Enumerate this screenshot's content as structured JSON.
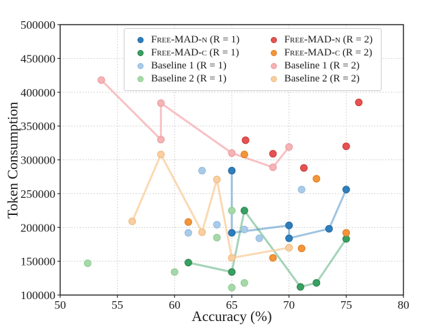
{
  "chart_data": {
    "type": "scatter",
    "title": "",
    "xlabel": "Accuracy (%)",
    "ylabel": "Token Consumption",
    "xlim": [
      50,
      80
    ],
    "ylim": [
      100000,
      500000
    ],
    "xticks": [
      50,
      55,
      60,
      65,
      70,
      75,
      80
    ],
    "yticks": [
      100000,
      150000,
      200000,
      250000,
      300000,
      350000,
      400000,
      450000,
      500000
    ],
    "grid": true,
    "legend_position": "upper center",
    "series": [
      {
        "label": "Free-MAD-n",
        "r_label": "(R = 1)",
        "smallcaps": true,
        "fill": "#2e7ebc",
        "edge": "#2268a0",
        "line": true,
        "line_alpha": 0.45,
        "points": [
          [
            65.0,
            284000
          ],
          [
            65.0,
            192000
          ],
          [
            70.0,
            203000
          ],
          [
            70.0,
            184000
          ],
          [
            73.5,
            198000
          ],
          [
            75.0,
            256000
          ]
        ]
      },
      {
        "label": "Free-MAD-c",
        "r_label": "(R = 1)",
        "smallcaps": true,
        "fill": "#38a061",
        "edge": "#2b824c",
        "line": true,
        "line_alpha": 0.45,
        "points": [
          [
            61.2,
            148000
          ],
          [
            65.0,
            134000
          ],
          [
            66.1,
            225000
          ],
          [
            71.0,
            112000
          ],
          [
            72.4,
            118000
          ],
          [
            75.0,
            183000
          ]
        ]
      },
      {
        "label": "Baseline 1",
        "r_label": "(R = 1)",
        "smallcaps": false,
        "fill": "#a9cbe9",
        "edge": "#93bbde",
        "line": false,
        "line_alpha": 0.45,
        "points": [
          [
            61.2,
            192000
          ],
          [
            62.4,
            284000
          ],
          [
            63.7,
            204000
          ],
          [
            66.1,
            197000
          ],
          [
            67.4,
            184000
          ],
          [
            71.1,
            256000
          ]
        ]
      },
      {
        "label": "Baseline 2",
        "r_label": "(R = 1)",
        "smallcaps": false,
        "fill": "#a6d9a8",
        "edge": "#8fc992",
        "line": false,
        "line_alpha": 0.45,
        "points": [
          [
            52.4,
            147000
          ],
          [
            60.0,
            134000
          ],
          [
            63.7,
            185000
          ],
          [
            65.0,
            225000
          ],
          [
            65.0,
            111000
          ],
          [
            66.1,
            118000
          ]
        ]
      },
      {
        "label": "Free-MAD-n",
        "r_label": "(R = 2)",
        "smallcaps": true,
        "fill": "#e85151",
        "edge": "#c63b3b",
        "line": false,
        "line_alpha": 0.45,
        "points": [
          [
            66.2,
            329000
          ],
          [
            68.6,
            309000
          ],
          [
            71.3,
            288000
          ],
          [
            75.0,
            320000
          ],
          [
            76.1,
            385000
          ]
        ]
      },
      {
        "label": "Free-MAD-c",
        "r_label": "(R = 2)",
        "smallcaps": true,
        "fill": "#f49539",
        "edge": "#da7e23",
        "line": false,
        "line_alpha": 0.45,
        "points": [
          [
            61.2,
            208000
          ],
          [
            66.1,
            308000
          ],
          [
            68.6,
            155000
          ],
          [
            71.1,
            169000
          ],
          [
            72.4,
            272000
          ],
          [
            75.0,
            192000
          ]
        ]
      },
      {
        "label": "Baseline 1",
        "r_label": "(R = 2)",
        "smallcaps": false,
        "fill": "#f5b3b5",
        "edge": "#ea9c9f",
        "line": true,
        "line_alpha": 0.8,
        "points": [
          [
            53.6,
            418000
          ],
          [
            58.8,
            330000
          ],
          [
            58.8,
            384000
          ],
          [
            65.0,
            310000
          ],
          [
            68.6,
            289000
          ],
          [
            70.0,
            319000
          ]
        ]
      },
      {
        "label": "Baseline 2",
        "r_label": "(R = 2)",
        "smallcaps": false,
        "fill": "#f9cfa1",
        "edge": "#eeb77d",
        "line": true,
        "line_alpha": 0.8,
        "points": [
          [
            56.3,
            209000
          ],
          [
            58.8,
            308000
          ],
          [
            62.4,
            193000
          ],
          [
            63.7,
            271000
          ],
          [
            65.0,
            155000
          ],
          [
            70.0,
            170000
          ]
        ]
      }
    ]
  }
}
